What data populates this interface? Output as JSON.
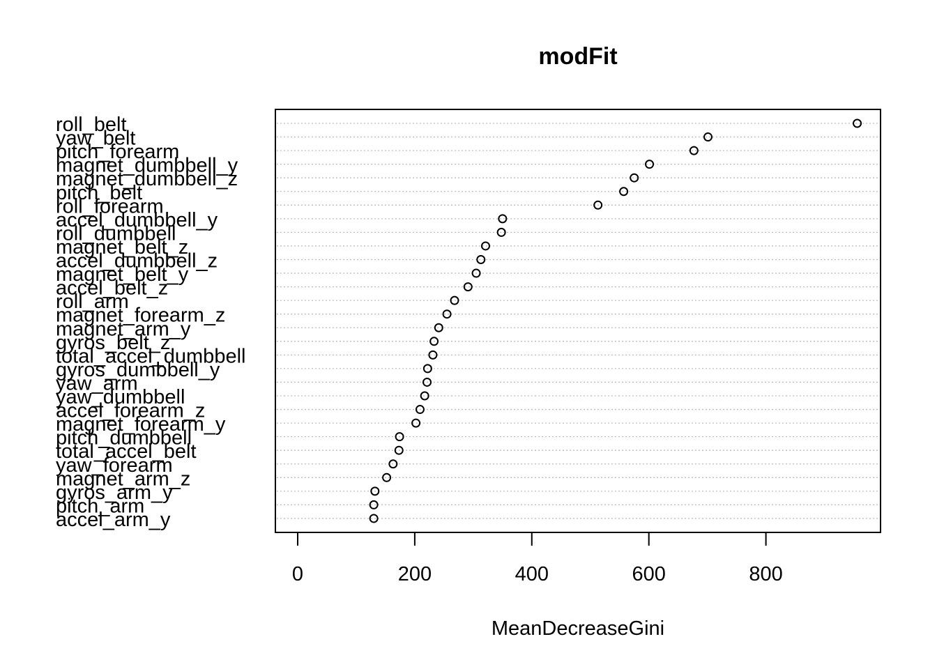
{
  "chart_data": {
    "type": "scatter",
    "title": "modFit",
    "xlabel": "MeanDecreaseGini",
    "ylabel": "",
    "xlim": [
      -40,
      1000
    ],
    "xticks": [
      0,
      200,
      400,
      600,
      800
    ],
    "grid": "dotted horizontal guide lines",
    "categories": [
      "roll_belt",
      "yaw_belt",
      "pitch_forearm",
      "magnet_dumbbell_y",
      "magnet_dumbbell_z",
      "pitch_belt",
      "roll_forearm",
      "accel_dumbbell_y",
      "roll_dumbbell",
      "magnet_belt_z",
      "accel_dumbbell_z",
      "magnet_belt_y",
      "accel_belt_z",
      "roll_arm",
      "magnet_forearm_z",
      "magnet_arm_y",
      "gyros_belt_z",
      "total_accel_dumbbell",
      "gyros_dumbbell_y",
      "yaw_arm",
      "yaw_dumbbell",
      "accel_forearm_z",
      "magnet_forearm_y",
      "pitch_dumbbell",
      "total_accel_belt",
      "yaw_forearm",
      "magnet_arm_z",
      "gyros_arm_y",
      "pitch_arm",
      "accel_arm_y"
    ],
    "values": [
      956,
      701,
      677,
      601,
      575,
      557,
      513,
      350,
      348,
      321,
      313,
      305,
      291,
      268,
      255,
      241,
      233,
      231,
      222,
      221,
      217,
      209,
      202,
      174,
      173,
      163,
      152,
      132,
      130,
      130
    ]
  }
}
